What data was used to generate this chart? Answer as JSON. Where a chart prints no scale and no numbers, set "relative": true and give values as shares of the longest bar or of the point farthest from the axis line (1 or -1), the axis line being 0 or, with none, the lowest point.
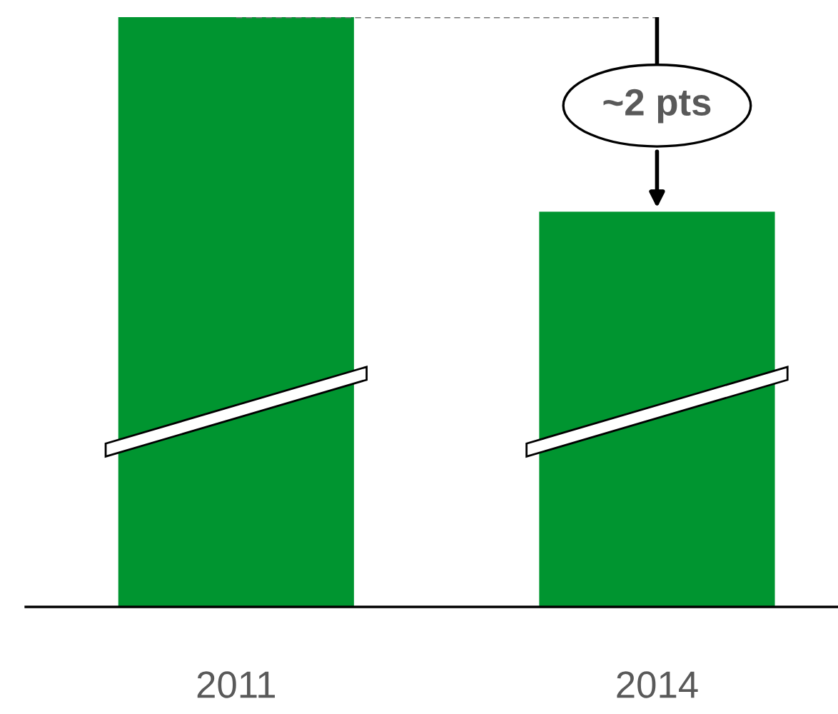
{
  "chart_data": {
    "type": "bar",
    "relative": true,
    "categories": [
      "2011",
      "2014"
    ],
    "values": [
      1,
      0.67
    ],
    "color": "#009530",
    "annotations": [
      {
        "text": "~2 pts",
        "x": "2014",
        "y": 0.67
      }
    ]
  }
}
